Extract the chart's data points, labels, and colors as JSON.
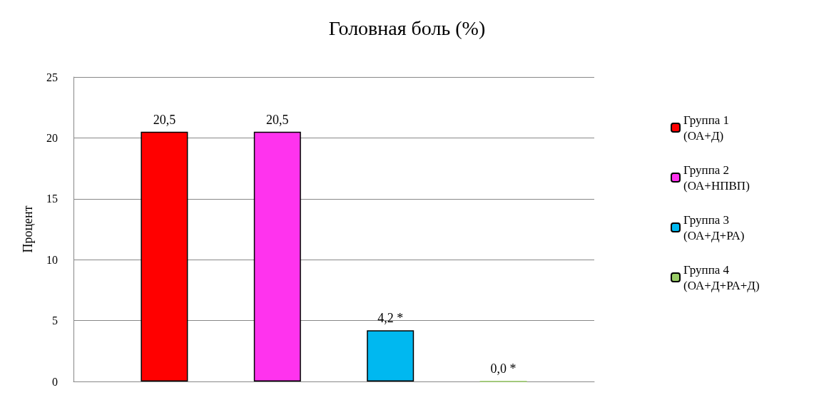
{
  "chart_data": {
    "type": "bar",
    "title": "Головная боль (%)",
    "ylabel": "Процент",
    "categories": [
      null
    ],
    "series": [
      {
        "name": "Группа 1 (ОА+Д)",
        "color": "#ff0000",
        "values": [
          20.5
        ],
        "value_labels": [
          "20,5"
        ]
      },
      {
        "name": "Группа 2 (ОА+НПВП)",
        "color": "#ff33ee",
        "values": [
          20.5
        ],
        "value_labels": [
          "20,5"
        ]
      },
      {
        "name": "Группа 3 (ОА+Д+РА)",
        "color": "#00b8f0",
        "values": [
          4.2
        ],
        "value_labels": [
          "4,2 *"
        ]
      },
      {
        "name": "Группа 4 (ОА+Д+РА+Д)",
        "color": "#99cc66",
        "values": [
          0
        ],
        "value_labels": [
          "0,0 *"
        ]
      }
    ],
    "ylim": [
      0,
      25
    ],
    "yticks": [
      0,
      5,
      10,
      15,
      20,
      25
    ],
    "grid": "y",
    "legend": "right"
  }
}
